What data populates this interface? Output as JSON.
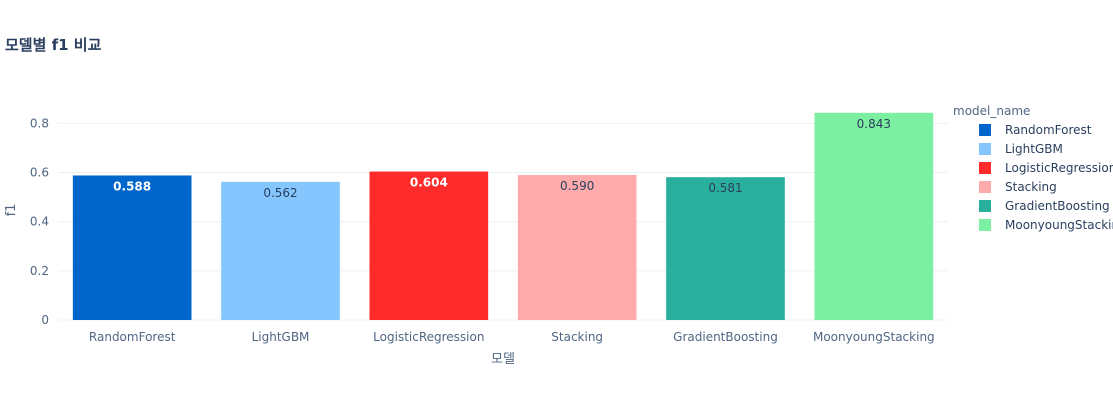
{
  "chart_data": {
    "type": "bar",
    "title": "모델별 f1 비교",
    "xlabel": "모델",
    "ylabel": "f1",
    "categories": [
      "RandomForest",
      "LightGBM",
      "LogisticRegression",
      "Stacking",
      "GradientBoosting",
      "MoonyoungStacking"
    ],
    "values": [
      0.588,
      0.562,
      0.604,
      0.59,
      0.581,
      0.843
    ],
    "value_labels": [
      "0.588",
      "0.562",
      "0.604",
      "0.590",
      "0.581",
      "0.843"
    ],
    "colors": [
      "#0066cc",
      "#85c6ff",
      "#ff2b2b",
      "#ffabab",
      "#29b09d",
      "#7defa1"
    ],
    "label_colors": [
      "#ffffff",
      "#2a3f5f",
      "#ffffff",
      "#2a3f5f",
      "#2a3f5f",
      "#2a3f5f"
    ],
    "label_bold": [
      true,
      false,
      true,
      false,
      false,
      false
    ],
    "yticks": [
      "0",
      "0.2",
      "0.4",
      "0.6",
      "0.8"
    ],
    "ytick_values": [
      0,
      0.2,
      0.4,
      0.6,
      0.8
    ],
    "ylim": [
      0,
      0.887
    ],
    "grid": true,
    "legend": {
      "title": "model_name",
      "placement": "right",
      "entries": [
        "RandomForest",
        "LightGBM",
        "LogisticRegression",
        "Stacking",
        "GradientBoosting",
        "MoonyoungStackin"
      ]
    }
  }
}
